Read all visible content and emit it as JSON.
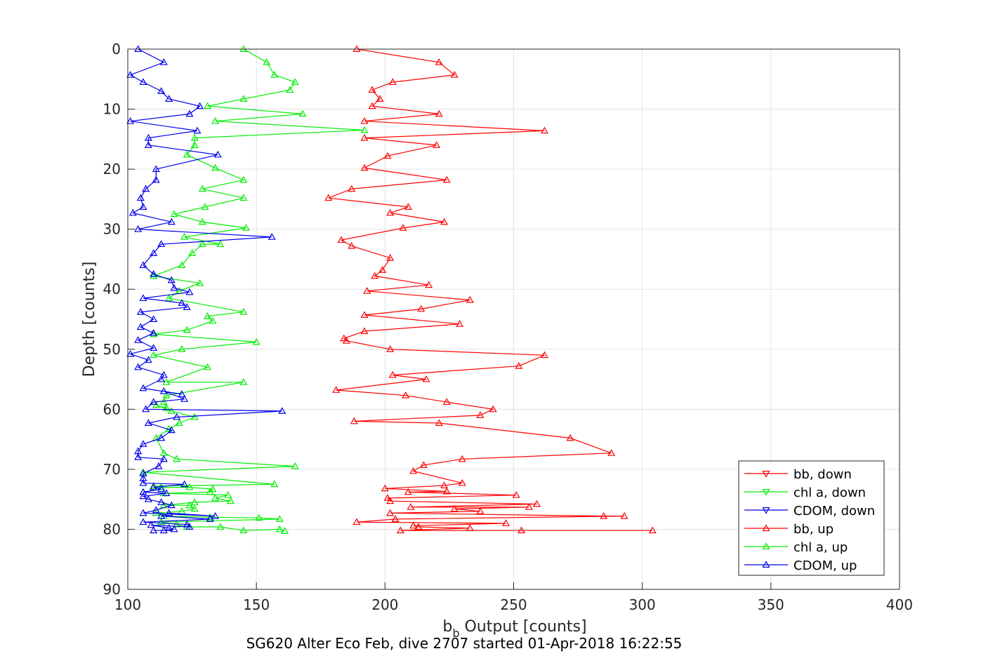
{
  "chart_data": {
    "type": "line",
    "title": "",
    "caption": "SG620 Alter Eco Feb, dive 2707 started 01-Apr-2018 16:22:55",
    "xlabel_main": "b",
    "xlabel_sub": "b",
    "xlabel_rest": " Output [counts]",
    "ylabel": "Depth [counts]",
    "xlim": [
      100,
      400
    ],
    "ylim": [
      0,
      90
    ],
    "y_reversed": true,
    "grid": true,
    "legend_position": "bottom-right",
    "xticks": [
      "100",
      "150",
      "200",
      "250",
      "300",
      "350",
      "400"
    ],
    "yticks": [
      "0",
      "10",
      "20",
      "30",
      "40",
      "50",
      "60",
      "70",
      "80",
      "90"
    ],
    "colors": {
      "bb": "#ff0000",
      "chl": "#00ee00",
      "cdom": "#0000ee"
    },
    "series": [
      {
        "name": "bb, down",
        "color": "#ff0000",
        "marker": "triangle-down",
        "x": [],
        "y": []
      },
      {
        "name": "chl a, down",
        "color": "#00ee00",
        "marker": "triangle-down",
        "x": [],
        "y": []
      },
      {
        "name": "CDOM, down",
        "color": "#0000ee",
        "marker": "triangle-down",
        "x": [],
        "y": []
      },
      {
        "name": "bb, up",
        "color": "#ff0000",
        "marker": "triangle-up",
        "x": [
          304,
          253,
          206,
          233,
          213,
          211,
          247,
          189,
          204,
          293,
          285,
          202,
          237,
          227,
          256,
          210,
          259,
          202,
          201,
          251,
          209,
          224,
          200,
          223,
          230,
          211,
          215,
          230,
          288,
          272,
          221,
          188,
          237,
          242,
          224,
          208,
          181,
          216,
          203,
          252,
          262,
          202,
          185,
          184,
          192,
          229,
          192,
          214,
          233,
          193,
          217,
          196,
          199,
          202,
          187,
          183,
          207,
          223,
          202,
          209,
          178,
          187,
          224,
          192,
          201,
          220,
          192,
          262,
          192,
          221,
          195,
          198,
          195,
          203,
          227,
          221,
          189
        ],
        "y": [
          80.2,
          80.2,
          80.2,
          79.8,
          79.6,
          79.4,
          79.0,
          78.8,
          78.3,
          77.8,
          77.8,
          77.3,
          77.0,
          76.6,
          76.3,
          76.3,
          75.8,
          75.3,
          74.8,
          74.3,
          73.8,
          73.7,
          73.2,
          72.7,
          72.3,
          70.3,
          69.3,
          68.3,
          67.3,
          64.8,
          62.3,
          62.0,
          61.0,
          60.0,
          58.8,
          57.7,
          56.8,
          55.0,
          54.3,
          52.8,
          51.0,
          50.0,
          48.6,
          48.2,
          47.0,
          45.8,
          44.3,
          43.3,
          41.8,
          40.3,
          39.3,
          37.8,
          36.8,
          34.8,
          32.8,
          31.8,
          29.8,
          28.8,
          27.3,
          26.3,
          24.8,
          23.3,
          21.8,
          19.8,
          17.8,
          16.0,
          14.8,
          13.6,
          12.0,
          10.8,
          9.5,
          8.3,
          6.8,
          5.5,
          4.3,
          2.2,
          0.0
        ]
      },
      {
        "name": "chl a, up",
        "color": "#00ee00",
        "marker": "triangle-up",
        "x": [
          161,
          159,
          145,
          136,
          123,
          119,
          113,
          159,
          151,
          132,
          114,
          111,
          121,
          126,
          124,
          114,
          126,
          140,
          134,
          139,
          114,
          132,
          133,
          124,
          113,
          110,
          157,
          106,
          165,
          119,
          114,
          111,
          116,
          120,
          126,
          117,
          111,
          115,
          114,
          115,
          145,
          115,
          131,
          110,
          121,
          150,
          110,
          123,
          133,
          131,
          145,
          116,
          120,
          128,
          110,
          121,
          125,
          129,
          136,
          122,
          146,
          129,
          118,
          130,
          145,
          129,
          145,
          134,
          123,
          126,
          126,
          192,
          134,
          168,
          131,
          145,
          163,
          165,
          157,
          154,
          145
        ],
        "y": [
          80.3,
          80.0,
          80.2,
          79.6,
          79.6,
          79.2,
          78.8,
          78.3,
          78.1,
          78.0,
          77.8,
          77.3,
          77.0,
          76.6,
          76.0,
          76.0,
          75.5,
          75.3,
          74.8,
          74.3,
          74.0,
          73.8,
          73.3,
          73.0,
          73.0,
          72.8,
          72.5,
          70.5,
          69.5,
          68.3,
          67.3,
          64.8,
          63.3,
          62.3,
          61.3,
          60.3,
          59.3,
          59.8,
          58.8,
          57.7,
          55.5,
          55.5,
          53.0,
          51.0,
          50.0,
          48.8,
          47.5,
          46.8,
          45.3,
          44.5,
          43.8,
          41.5,
          40.3,
          39.0,
          37.8,
          36.0,
          34.0,
          32.5,
          32.5,
          31.3,
          29.8,
          28.8,
          27.5,
          26.3,
          24.8,
          23.3,
          21.8,
          19.8,
          17.6,
          16.0,
          14.8,
          13.5,
          12.0,
          10.8,
          9.5,
          8.3,
          6.8,
          5.5,
          4.3,
          2.2,
          0.0
        ]
      },
      {
        "name": "CDOM, up",
        "color": "#0000ee",
        "marker": "triangle-up",
        "x": [
          110,
          114,
          118,
          116,
          109,
          124,
          123,
          106,
          132,
          113,
          116,
          134,
          106,
          111,
          117,
          113,
          108,
          106,
          115,
          106,
          113,
          110,
          122,
          106,
          106,
          106,
          112,
          114,
          104,
          104,
          106,
          113,
          117,
          108,
          119,
          160,
          107,
          110,
          122,
          114,
          121,
          106,
          113,
          114,
          104,
          108,
          101,
          110,
          104,
          110,
          105,
          110,
          105,
          123,
          121,
          106,
          124,
          118,
          117,
          110,
          106,
          110,
          113,
          156,
          104,
          117,
          102,
          106,
          105,
          107,
          111,
          111,
          135,
          108,
          108,
          127,
          101,
          124,
          128,
          116,
          113,
          106,
          101,
          114,
          104
        ],
        "y": [
          80.2,
          80.2,
          80.0,
          79.8,
          79.3,
          79.6,
          79.2,
          78.8,
          78.3,
          77.8,
          77.3,
          77.8,
          77.3,
          76.8,
          76.0,
          75.5,
          75.0,
          74.5,
          74.0,
          73.8,
          73.3,
          73.0,
          72.5,
          72.3,
          71.5,
          70.7,
          69.5,
          68.3,
          68.0,
          67.0,
          65.8,
          64.8,
          63.5,
          62.3,
          61.3,
          60.3,
          60.0,
          58.8,
          58.3,
          57.0,
          57.5,
          56.5,
          55.0,
          54.3,
          53.0,
          51.8,
          50.8,
          49.8,
          48.5,
          47.3,
          46.3,
          45.0,
          43.8,
          43.0,
          42.3,
          41.5,
          40.5,
          39.8,
          38.5,
          37.5,
          36.0,
          34.0,
          32.5,
          31.3,
          30.0,
          28.8,
          27.3,
          26.3,
          24.8,
          23.3,
          21.8,
          20.0,
          17.6,
          16.0,
          14.8,
          13.6,
          12.0,
          10.8,
          9.5,
          8.3,
          7.0,
          5.5,
          4.3,
          2.2,
          0.0
        ]
      }
    ]
  }
}
